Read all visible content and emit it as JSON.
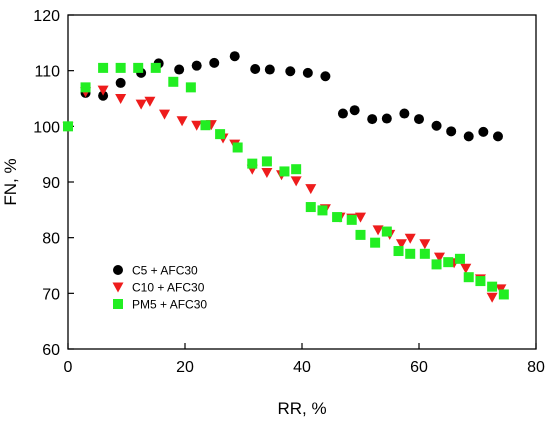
{
  "chart_data": {
    "type": "scatter",
    "title": "",
    "xlabel": "RR, %",
    "ylabel": "FN, %",
    "xlim": [
      0,
      80
    ],
    "ylim": [
      60,
      120
    ],
    "xticks": [
      0,
      20,
      40,
      60,
      80
    ],
    "yticks": [
      60,
      70,
      80,
      90,
      100,
      110,
      120
    ],
    "grid": false,
    "legend_position": "lower-left",
    "series": [
      {
        "name": "C5 + AFC30",
        "marker": "circle",
        "color": "#000000",
        "points": [
          [
            0,
            100
          ],
          [
            3,
            106
          ],
          [
            6,
            105.5
          ],
          [
            9,
            107.8
          ],
          [
            12.5,
            109.6
          ],
          [
            15.5,
            111.3
          ],
          [
            19,
            110.2
          ],
          [
            22,
            110.9
          ],
          [
            25,
            111.4
          ],
          [
            28.5,
            112.6
          ],
          [
            32,
            110.3
          ],
          [
            34.5,
            110.2
          ],
          [
            38,
            109.9
          ],
          [
            41,
            109.6
          ],
          [
            44,
            109
          ],
          [
            47,
            102.3
          ],
          [
            49,
            102.9
          ],
          [
            52,
            101.3
          ],
          [
            54.5,
            101.4
          ],
          [
            57.5,
            102.3
          ],
          [
            60,
            101.3
          ],
          [
            63,
            100.1
          ],
          [
            65.5,
            99.1
          ],
          [
            68.5,
            98.2
          ],
          [
            71,
            99
          ],
          [
            73.5,
            98.2
          ]
        ]
      },
      {
        "name": "C10 + AFC30",
        "marker": "triangle-down",
        "color": "#ee1c1c",
        "points": [
          [
            0,
            100
          ],
          [
            3,
            106.2
          ],
          [
            6,
            106.5
          ],
          [
            9,
            105
          ],
          [
            12.5,
            104
          ],
          [
            14,
            104.5
          ],
          [
            16.5,
            102.2
          ],
          [
            19.5,
            101
          ],
          [
            22,
            100.2
          ],
          [
            24.5,
            100.3
          ],
          [
            26.5,
            97.9
          ],
          [
            28.5,
            96.8
          ],
          [
            31.5,
            92.3
          ],
          [
            34,
            91.7
          ],
          [
            36.5,
            91.3
          ],
          [
            39,
            90.2
          ],
          [
            41.5,
            88.8
          ],
          [
            44,
            85.2
          ],
          [
            46.5,
            83.7
          ],
          [
            48.5,
            83.5
          ],
          [
            50,
            83.7
          ],
          [
            53,
            81.4
          ],
          [
            55,
            80.6
          ],
          [
            57,
            78.9
          ],
          [
            58.5,
            79.9
          ],
          [
            61,
            78.9
          ],
          [
            63.5,
            76.5
          ],
          [
            66,
            75.5
          ],
          [
            68,
            74.5
          ],
          [
            70.5,
            72.6
          ],
          [
            72.5,
            69.3
          ],
          [
            74,
            70.8
          ]
        ]
      },
      {
        "name": "PM5 + AFC30",
        "marker": "square",
        "color": "#22ee22",
        "points": [
          [
            0,
            100
          ],
          [
            3,
            107
          ],
          [
            6,
            110.5
          ],
          [
            9,
            110.5
          ],
          [
            12,
            110.5
          ],
          [
            15,
            110.5
          ],
          [
            18,
            108
          ],
          [
            21,
            107
          ],
          [
            23.5,
            100.2
          ],
          [
            26,
            98.6
          ],
          [
            29,
            96.2
          ],
          [
            31.5,
            93.3
          ],
          [
            34,
            93.7
          ],
          [
            37,
            91.9
          ],
          [
            39,
            92.3
          ],
          [
            41.5,
            85.5
          ],
          [
            43.5,
            84.9
          ],
          [
            46,
            83.7
          ],
          [
            48.5,
            83.2
          ],
          [
            50,
            80.5
          ],
          [
            52.5,
            79.1
          ],
          [
            54.5,
            81.1
          ],
          [
            56.5,
            77.6
          ],
          [
            58.5,
            77.1
          ],
          [
            61,
            77.1
          ],
          [
            63,
            75.2
          ],
          [
            65,
            75.6
          ],
          [
            67,
            76.2
          ],
          [
            68.5,
            72.9
          ],
          [
            70.5,
            72.2
          ],
          [
            72.5,
            71.2
          ],
          [
            74.5,
            69.8
          ]
        ]
      }
    ]
  }
}
